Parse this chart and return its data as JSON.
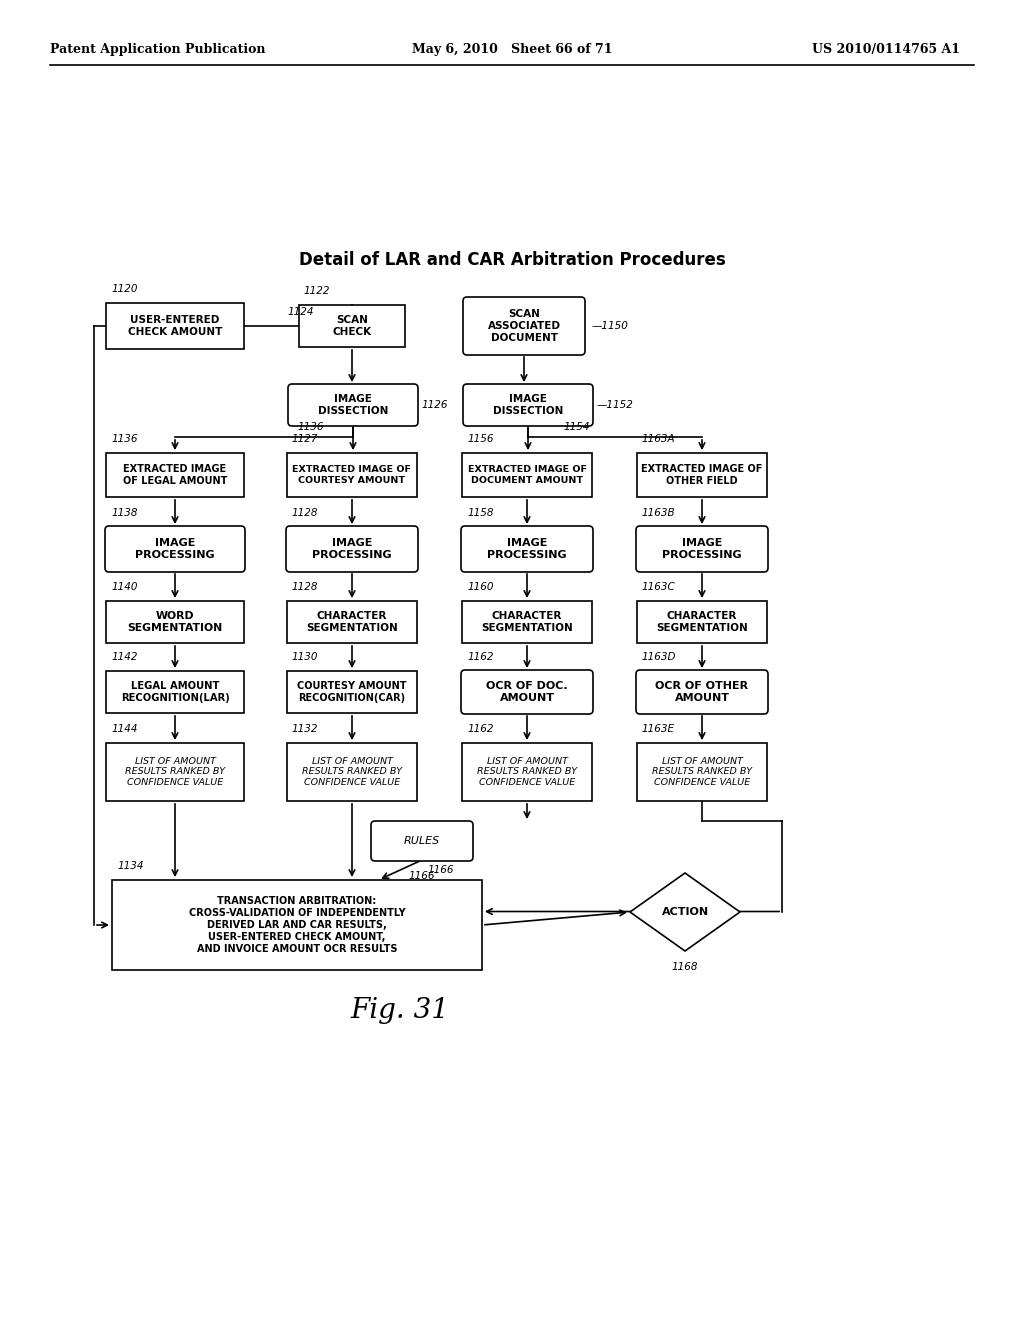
{
  "header_left": "Patent Application Publication",
  "header_mid": "May 6, 2010   Sheet 66 of 71",
  "header_right": "US 2010/0114765 A1",
  "title": "Detail of LAR and CAR Arbitration Procedures",
  "fig_label": "Fig. 31",
  "bg_color": "#ffffff"
}
